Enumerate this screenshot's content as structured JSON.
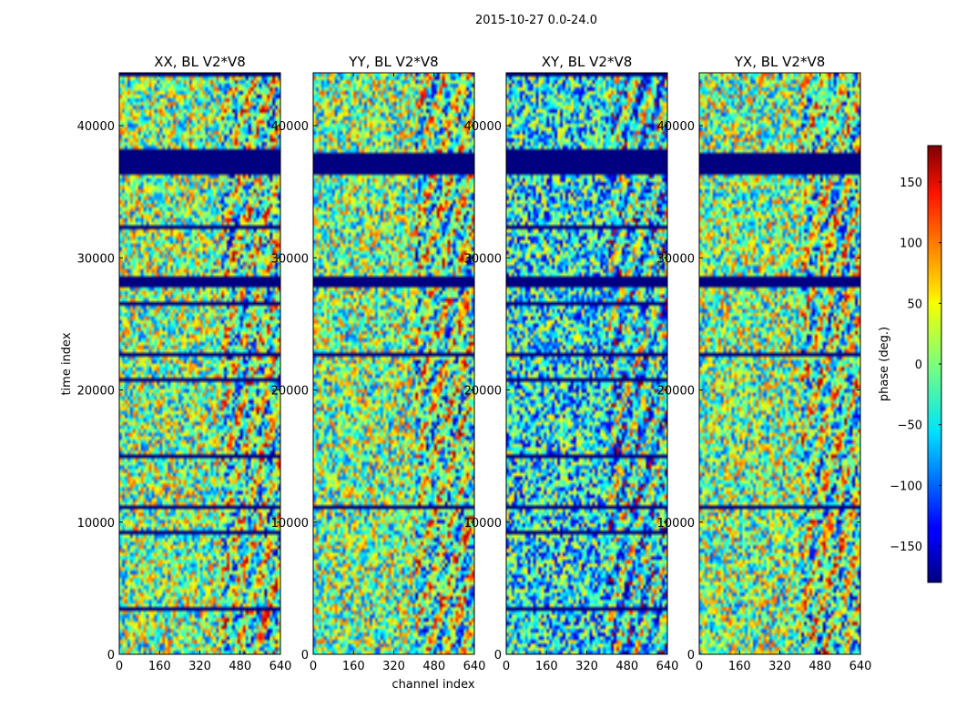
{
  "figure": {
    "suptitle": "2015-10-27 0.0-24.0"
  },
  "chart_data": {
    "type": "heatmap",
    "colormap": "jet",
    "xlabel": "channel index",
    "ylabel": "time index",
    "xlim": [
      0,
      640
    ],
    "ylim": [
      0,
      44000
    ],
    "xticks": [
      0,
      160,
      320,
      480,
      640
    ],
    "yticks": [
      0,
      10000,
      20000,
      30000,
      40000
    ],
    "panels": [
      {
        "title": "XX, BL V2*V8",
        "polarization": "XX"
      },
      {
        "title": "YY, BL V2*V8",
        "polarization": "YY"
      },
      {
        "title": "XY, BL V2*V8",
        "polarization": "XY"
      },
      {
        "title": "YX, BL V2*V8",
        "polarization": "YX"
      }
    ],
    "flagged_time_ranges": [
      [
        36400,
        38000
      ],
      [
        27900,
        28500
      ],
      [
        22600,
        22900
      ],
      [
        11100,
        11300
      ],
      [
        21950,
        22100
      ]
    ],
    "colorbar": {
      "label": "phase (deg.)",
      "min": -180,
      "max": 180,
      "ticks": [
        -150,
        -100,
        -50,
        0,
        50,
        100,
        150
      ]
    }
  }
}
